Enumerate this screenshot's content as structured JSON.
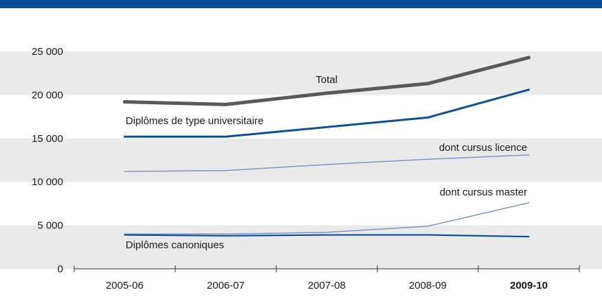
{
  "chart_data": {
    "type": "line",
    "categories": [
      "2005-06",
      "2006-07",
      "2007-08",
      "2008-09",
      "2009-10"
    ],
    "highlight_category": "2009-10",
    "ylim": [
      0,
      25000
    ],
    "yticks": [
      0,
      5000,
      10000,
      15000,
      20000,
      25000
    ],
    "ytick_labels": [
      "0",
      "5 000",
      "10 000",
      "15 000",
      "20 000",
      "25 000"
    ],
    "grid": false,
    "background_bands": true,
    "series": [
      {
        "name": "Total",
        "values": [
          19200,
          18900,
          20200,
          21300,
          24300
        ],
        "color": "#595959"
      },
      {
        "name": "Diplômes de type universitaire",
        "values": [
          15200,
          15200,
          16300,
          17400,
          20600
        ],
        "color": "#0d4f96"
      },
      {
        "name": "dont cursus licence",
        "values": [
          11200,
          11300,
          12000,
          12600,
          13100
        ],
        "color": "#7b93c8"
      },
      {
        "name": "dont cursus master",
        "values": [
          4000,
          4000,
          4200,
          4900,
          7600
        ],
        "color": "#7b93c8"
      },
      {
        "name": "Diplômes canoniques",
        "values": [
          3900,
          3800,
          3900,
          3900,
          3700
        ],
        "color": "#0d4f96"
      }
    ]
  },
  "colors": {
    "top_bar": "#0d4f96",
    "band": "#eaeaea",
    "axis": "#333333",
    "highlight_tick": "#0d4f96"
  }
}
